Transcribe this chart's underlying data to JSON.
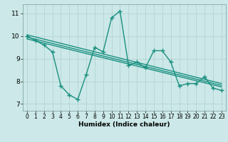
{
  "x": [
    0,
    1,
    2,
    3,
    4,
    5,
    6,
    7,
    8,
    9,
    10,
    11,
    12,
    13,
    14,
    15,
    16,
    17,
    18,
    19,
    20,
    21,
    22,
    23
  ],
  "main_line": [
    10.0,
    9.8,
    9.6,
    9.3,
    7.8,
    7.4,
    7.2,
    8.3,
    9.5,
    9.3,
    10.8,
    11.1,
    8.7,
    8.85,
    8.6,
    9.35,
    9.35,
    8.85,
    7.8,
    7.9,
    7.9,
    8.2,
    7.7,
    7.6
  ],
  "trend1_y": [
    10.05,
    7.9
  ],
  "trend2_y": [
    9.95,
    7.82
  ],
  "trend3_y": [
    9.87,
    7.75
  ],
  "trend_x": [
    0,
    23
  ],
  "line_color": "#1a9080",
  "bg_color": "#cce8e8",
  "grid_color": "#b0d0d0",
  "xlabel": "Humidex (Indice chaleur)",
  "ylim": [
    6.7,
    11.4
  ],
  "xlim": [
    -0.5,
    23.5
  ],
  "yticks": [
    7,
    8,
    9,
    10,
    11
  ],
  "xticks": [
    0,
    1,
    2,
    3,
    4,
    5,
    6,
    7,
    8,
    9,
    10,
    11,
    12,
    13,
    14,
    15,
    16,
    17,
    18,
    19,
    20,
    21,
    22,
    23
  ],
  "marker": "+",
  "markersize": 4,
  "linewidth": 1.0
}
